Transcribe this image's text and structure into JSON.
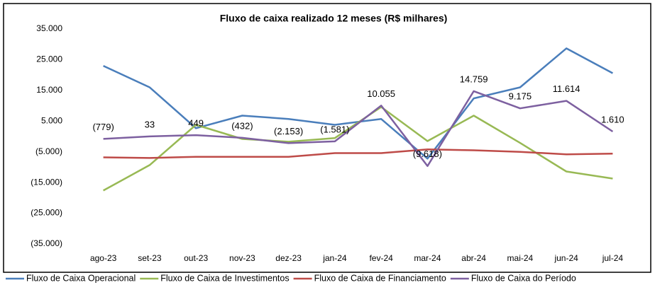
{
  "chart_data": {
    "type": "line",
    "title": "Fluxo de caixa realizado 12 meses (R$ milhares)",
    "categories": [
      "ago-23",
      "set-23",
      "out-23",
      "nov-23",
      "dez-23",
      "jan-24",
      "fev-24",
      "mar-24",
      "abr-24",
      "mai-24",
      "jun-24",
      "jul-24"
    ],
    "ylim": [
      -35000,
      35000
    ],
    "yticks": [
      {
        "value": 35000,
        "label": "35.000"
      },
      {
        "value": 25000,
        "label": "25.000"
      },
      {
        "value": 15000,
        "label": "15.000"
      },
      {
        "value": 5000,
        "label": "5.000"
      },
      {
        "value": -5000,
        "label": "(5.000)"
      },
      {
        "value": -15000,
        "label": "(15.000)"
      },
      {
        "value": -25000,
        "label": "(25.000)"
      },
      {
        "value": -35000,
        "label": "(35.000)"
      }
    ],
    "grid": false,
    "legend": "bottom",
    "series": [
      {
        "name": "Fluxo de Caixa Operacional",
        "color": "#4a7ebb",
        "values": [
          23000,
          16000,
          2700,
          6800,
          5700,
          3800,
          5700,
          -7200,
          12400,
          16000,
          28700,
          20600
        ]
      },
      {
        "name": "Fluxo de Caixa de Investimentos",
        "color": "#98b954",
        "values": [
          -17600,
          -9300,
          3800,
          -800,
          -1700,
          -500,
          9600,
          -1500,
          6800,
          -2100,
          -11400,
          -13700
        ]
      },
      {
        "name": "Fluxo de Caixa de Financiamento",
        "color": "#be4b48",
        "values": [
          -6800,
          -7000,
          -6600,
          -6600,
          -6600,
          -5400,
          -5400,
          -4200,
          -4500,
          -5000,
          -5800,
          -5600
        ]
      },
      {
        "name": "Fluxo de Caixa do Período",
        "color": "#7d60a0",
        "values": [
          -779,
          33,
          449,
          -432,
          -2153,
          -1581,
          10055,
          -9618,
          14759,
          9175,
          11614,
          1610
        ],
        "value_labels": [
          "(779)",
          "33",
          "449",
          "(432)",
          "(2.153)",
          "(1.581)",
          "10.055",
          "(9.618)",
          "14.759",
          "9.175",
          "11.614",
          "1.610"
        ]
      }
    ]
  }
}
